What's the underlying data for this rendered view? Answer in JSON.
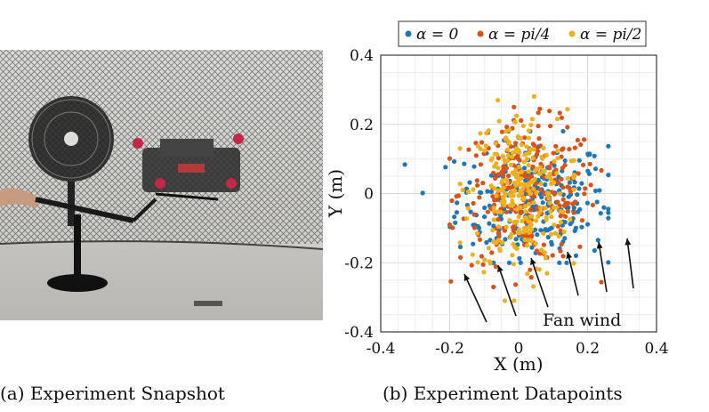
{
  "captions": {
    "a": "(a) Experiment Snapshot",
    "b": "(b) Experiment Datapoints"
  },
  "chart_data": {
    "type": "scatter",
    "xlabel": "X (m)",
    "ylabel": "Y (m)",
    "xlim": [
      -0.4,
      0.4
    ],
    "ylim": [
      -0.4,
      0.4
    ],
    "xticks": [
      "-0.4",
      "-0.2",
      "0",
      "0.2",
      "0.4"
    ],
    "yticks": [
      "-0.4",
      "-0.2",
      "0",
      "0.2",
      "0.4"
    ],
    "grid": true,
    "legend_position": "top",
    "annotation": "Fan wind",
    "series": [
      {
        "name": "α = 0",
        "color": "#1f77b4",
        "center": [
          0.04,
          -0.02
        ],
        "spread": [
          0.11,
          0.09
        ],
        "count": 260,
        "extent": {
          "x": [
            -0.33,
            0.26
          ],
          "y": [
            -0.2,
            0.18
          ]
        }
      },
      {
        "name": "α = pi/4",
        "color": "#d95319",
        "center": [
          0.03,
          0.0
        ],
        "spread": [
          0.1,
          0.1
        ],
        "count": 260,
        "extent": {
          "x": [
            -0.2,
            0.24
          ],
          "y": [
            -0.27,
            0.25
          ]
        }
      },
      {
        "name": "α = pi/2",
        "color": "#edb120",
        "center": [
          0.0,
          0.0
        ],
        "spread": [
          0.07,
          0.12
        ],
        "count": 260,
        "extent": {
          "x": [
            -0.17,
            0.16
          ],
          "y": [
            -0.31,
            0.32
          ]
        }
      }
    ]
  }
}
